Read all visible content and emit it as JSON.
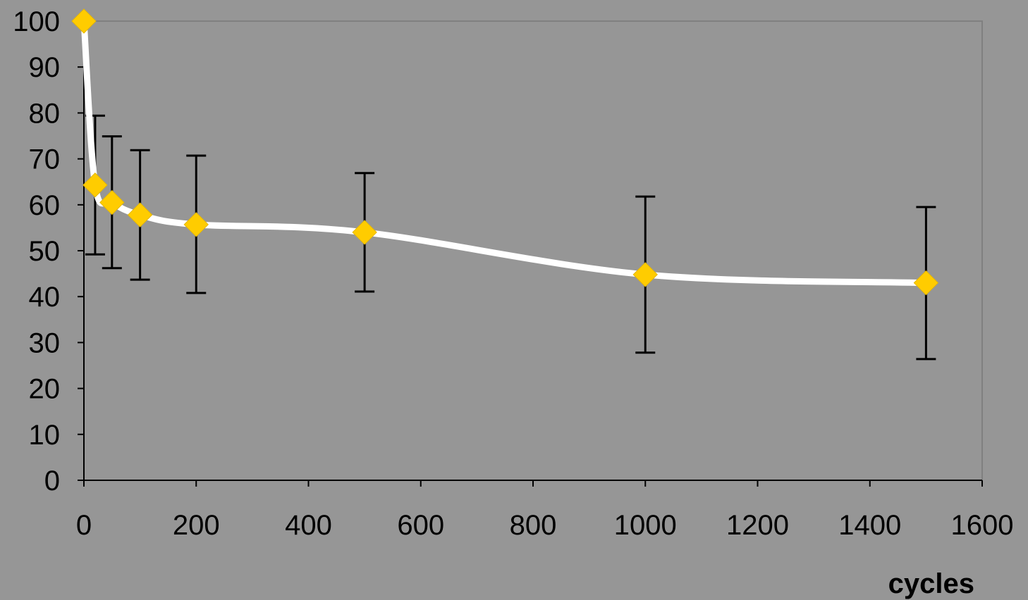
{
  "chart_data": {
    "type": "line",
    "title": "",
    "xlabel": "cycles",
    "ylabel": "",
    "xlim": [
      0,
      1600
    ],
    "ylim": [
      0,
      100
    ],
    "x_ticks": [
      0,
      200,
      400,
      600,
      800,
      1000,
      1200,
      1400,
      1600
    ],
    "y_ticks": [
      0,
      10,
      20,
      30,
      40,
      50,
      60,
      70,
      80,
      90,
      100
    ],
    "grid": false,
    "legend": "none",
    "smooth": true,
    "series": [
      {
        "x": [
          0,
          20,
          50,
          100,
          200,
          500,
          1000,
          1500
        ],
        "y": [
          100,
          64.3,
          60.5,
          57.8,
          55.7,
          54.0,
          44.8,
          43.0
        ],
        "error_low": [
          100,
          49.2,
          46.2,
          43.7,
          40.8,
          41.1,
          27.8,
          26.4
        ],
        "error_high": [
          100,
          79.4,
          74.9,
          71.9,
          70.7,
          66.9,
          61.8,
          59.5
        ],
        "line_color": "#FFFFFF",
        "marker": "diamond",
        "marker_color": "#FFCC00",
        "error_bar_color": "#000000"
      }
    ]
  }
}
